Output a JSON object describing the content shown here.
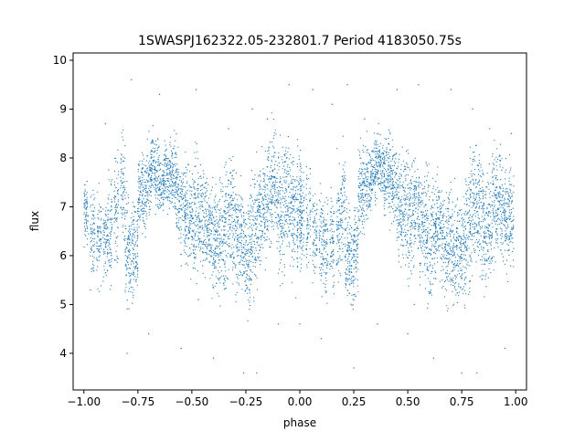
{
  "chart_data": {
    "type": "scatter",
    "title": "1SWASPJ162322.05-232801.7 Period 4183050.75s",
    "xlabel": "phase",
    "ylabel": "flux",
    "xlim": [
      -1.05,
      1.05
    ],
    "ylim": [
      3.25,
      10.15
    ],
    "xticks": [
      -1.0,
      -0.75,
      -0.5,
      -0.25,
      0.0,
      0.25,
      0.5,
      0.75,
      1.0
    ],
    "xtick_labels": [
      "−1.00",
      "−0.75",
      "−0.50",
      "−0.25",
      "0.00",
      "0.25",
      "0.50",
      "0.75",
      "1.00"
    ],
    "yticks": [
      4,
      5,
      6,
      7,
      8,
      9,
      10
    ],
    "ytick_labels": [
      "4",
      "5",
      "6",
      "7",
      "8",
      "9",
      "10"
    ],
    "grid": false,
    "marker_color": "#1f77b4",
    "series": [
      {
        "x": [
          -0.99,
          -0.96,
          -0.93,
          -0.9,
          -0.88,
          -0.85,
          -0.82,
          -0.8,
          -0.78,
          -0.76,
          -0.74,
          -0.72,
          -0.7,
          -0.68,
          -0.66,
          -0.64,
          -0.62,
          -0.6,
          -0.58,
          -0.56,
          -0.54,
          -0.52,
          -0.5,
          -0.48,
          -0.46,
          -0.44,
          -0.42,
          -0.4,
          -0.38,
          -0.36,
          -0.34,
          -0.32,
          -0.3,
          -0.28,
          -0.26,
          -0.24,
          -0.22,
          -0.2,
          -0.18,
          -0.16,
          -0.14,
          -0.12,
          -0.1,
          -0.08,
          -0.06,
          -0.04,
          -0.02,
          0.0,
          0.01,
          0.04,
          0.07,
          0.1,
          0.12,
          0.15,
          0.18,
          0.2,
          0.22,
          0.24,
          0.26,
          0.28,
          0.3,
          0.32,
          0.34,
          0.36,
          0.38,
          0.4,
          0.42,
          0.44,
          0.46,
          0.48,
          0.5,
          0.52,
          0.54,
          0.56,
          0.58,
          0.6,
          0.62,
          0.64,
          0.66,
          0.68,
          0.7,
          0.72,
          0.74,
          0.76,
          0.78,
          0.8,
          0.82,
          0.84,
          0.86,
          0.88,
          0.9,
          0.92,
          0.94,
          0.96,
          0.98
        ],
        "y": [
          6.85,
          6.5,
          6.4,
          6.3,
          6.6,
          7.0,
          7.4,
          6.1,
          5.95,
          6.0,
          7.3,
          7.2,
          7.5,
          7.9,
          7.6,
          7.5,
          7.6,
          7.65,
          7.6,
          7.2,
          6.9,
          6.8,
          6.7,
          7.0,
          6.9,
          6.7,
          6.5,
          6.3,
          6.2,
          6.4,
          6.6,
          6.9,
          6.6,
          6.3,
          6.2,
          6.0,
          6.3,
          6.6,
          6.8,
          7.0,
          7.3,
          7.5,
          7.1,
          6.9,
          7.2,
          7.0,
          6.8,
          6.9,
          6.8,
          6.7,
          6.5,
          6.4,
          6.2,
          6.3,
          6.6,
          7.0,
          6.1,
          5.9,
          6.2,
          7.3,
          7.4,
          7.6,
          7.7,
          7.9,
          7.7,
          7.6,
          7.6,
          7.5,
          7.0,
          6.9,
          6.8,
          6.9,
          7.0,
          6.8,
          6.6,
          6.3,
          6.5,
          6.7,
          6.4,
          6.2,
          6.3,
          6.1,
          6.0,
          6.2,
          6.6,
          7.0,
          7.1,
          6.8,
          6.5,
          6.6,
          7.0,
          7.2,
          6.9,
          6.8,
          6.9
        ],
        "spread": [
          0.3,
          0.4,
          0.45,
          0.4,
          0.5,
          0.5,
          0.5,
          0.55,
          0.5,
          0.45,
          0.4,
          0.4,
          0.4,
          0.3,
          0.35,
          0.3,
          0.35,
          0.35,
          0.4,
          0.45,
          0.5,
          0.45,
          0.55,
          0.6,
          0.5,
          0.5,
          0.45,
          0.5,
          0.55,
          0.6,
          0.6,
          0.7,
          0.6,
          0.55,
          0.5,
          0.55,
          0.6,
          0.6,
          0.55,
          0.5,
          0.5,
          0.55,
          0.6,
          0.6,
          0.55,
          0.55,
          0.6,
          0.6,
          0.5,
          0.45,
          0.5,
          0.5,
          0.55,
          0.55,
          0.55,
          0.5,
          0.5,
          0.5,
          0.45,
          0.45,
          0.4,
          0.35,
          0.35,
          0.3,
          0.3,
          0.35,
          0.4,
          0.4,
          0.5,
          0.55,
          0.6,
          0.6,
          0.5,
          0.5,
          0.55,
          0.6,
          0.55,
          0.5,
          0.5,
          0.55,
          0.55,
          0.55,
          0.5,
          0.55,
          0.6,
          0.6,
          0.55,
          0.6,
          0.55,
          0.55,
          0.55,
          0.55,
          0.5,
          0.5,
          0.5
        ],
        "outliers": [
          [
            -0.9,
            8.7
          ],
          [
            -0.8,
            4.0
          ],
          [
            -0.78,
            9.6
          ],
          [
            -0.7,
            4.4
          ],
          [
            -0.65,
            9.3
          ],
          [
            -0.55,
            4.1
          ],
          [
            -0.48,
            9.4
          ],
          [
            -0.4,
            3.9
          ],
          [
            -0.33,
            8.6
          ],
          [
            -0.26,
            3.6
          ],
          [
            -0.22,
            9.0
          ],
          [
            -0.2,
            3.6
          ],
          [
            -0.15,
            8.8
          ],
          [
            -0.1,
            4.6
          ],
          [
            -0.05,
            9.5
          ],
          [
            0.0,
            4.6
          ],
          [
            0.06,
            9.4
          ],
          [
            0.1,
            4.3
          ],
          [
            0.15,
            9.1
          ],
          [
            0.22,
            9.5
          ],
          [
            0.25,
            3.7
          ],
          [
            0.3,
            8.8
          ],
          [
            0.36,
            4.6
          ],
          [
            0.45,
            9.4
          ],
          [
            0.5,
            4.4
          ],
          [
            0.55,
            9.5
          ],
          [
            0.62,
            3.9
          ],
          [
            0.7,
            9.4
          ],
          [
            0.75,
            3.6
          ],
          [
            0.8,
            9.0
          ],
          [
            0.82,
            3.6
          ],
          [
            0.88,
            8.6
          ],
          [
            0.95,
            4.1
          ],
          [
            0.98,
            8.5
          ],
          [
            -0.97,
            5.3
          ],
          [
            0.53,
            5.0
          ],
          [
            -0.47,
            5.1
          ]
        ]
      }
    ]
  }
}
